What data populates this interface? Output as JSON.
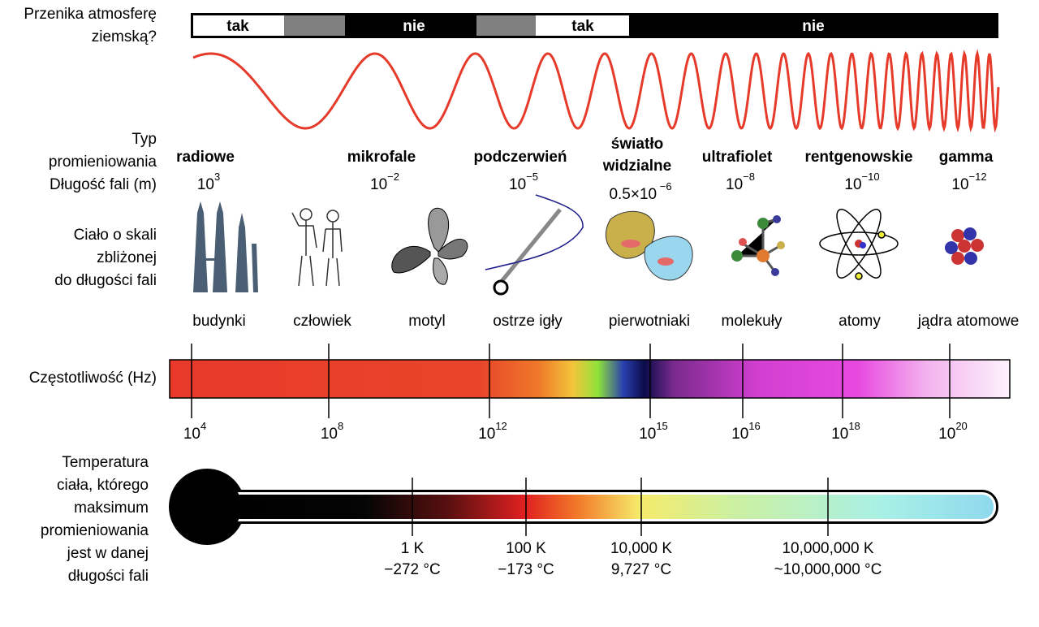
{
  "atmosphere": {
    "label": [
      "Przenika atmosferę",
      "ziemską?"
    ],
    "segments": [
      "tak",
      "nie",
      "tak",
      "nie"
    ]
  },
  "row_labels": {
    "type": [
      "Typ",
      "promieniowania"
    ],
    "wavelength": "Długość fali (m)",
    "body": [
      "Ciało o skali",
      "zbliżonej",
      "do długości fali"
    ],
    "frequency": "Częstotliwość (Hz)",
    "temperature": [
      "Temperatura",
      "ciała, którego",
      "maksimum",
      "promieniowania",
      "jest w danej",
      "długości fali"
    ]
  },
  "radiation": [
    {
      "name": [
        "radiowe"
      ],
      "wavelength": "10",
      "exponent": "3"
    },
    {
      "name": [
        "mikrofale"
      ],
      "wavelength": "10",
      "exponent": "−2"
    },
    {
      "name": [
        "podczerwień"
      ],
      "wavelength": "10",
      "exponent": "−5"
    },
    {
      "name": [
        "światło",
        "widzialne"
      ],
      "wavelength": "0.5×10",
      "exponent": " −6"
    },
    {
      "name": [
        "ultrafiolet"
      ],
      "wavelength": "10",
      "exponent": "−8"
    },
    {
      "name": [
        "rentgenowskie"
      ],
      "wavelength": "10",
      "exponent": "−10"
    },
    {
      "name": [
        "gamma"
      ],
      "wavelength": "10",
      "exponent": "−12"
    }
  ],
  "objects": [
    "budynki",
    "człowiek",
    "motyl",
    "ostrze igły",
    "pierwotniaki",
    "molekuły",
    "atomy",
    "jądra atomowe"
  ],
  "frequency_ticks": [
    {
      "base": "10",
      "exponent": "4"
    },
    {
      "base": "10",
      "exponent": "8"
    },
    {
      "base": "10",
      "exponent": "12"
    },
    {
      "base": "10",
      "exponent": "15"
    },
    {
      "base": "10",
      "exponent": "16"
    },
    {
      "base": "10",
      "exponent": "18"
    },
    {
      "base": "10",
      "exponent": "20"
    }
  ],
  "temperature_ticks": [
    {
      "kelvin": "1 K",
      "celsius": "−272 °C"
    },
    {
      "kelvin": "100 K",
      "celsius": "−173 °C"
    },
    {
      "kelvin": "10,000 K",
      "celsius": "9,727 °C"
    },
    {
      "kelvin": "10,000,000 K",
      "celsius": "~10,000,000 °C"
    }
  ]
}
